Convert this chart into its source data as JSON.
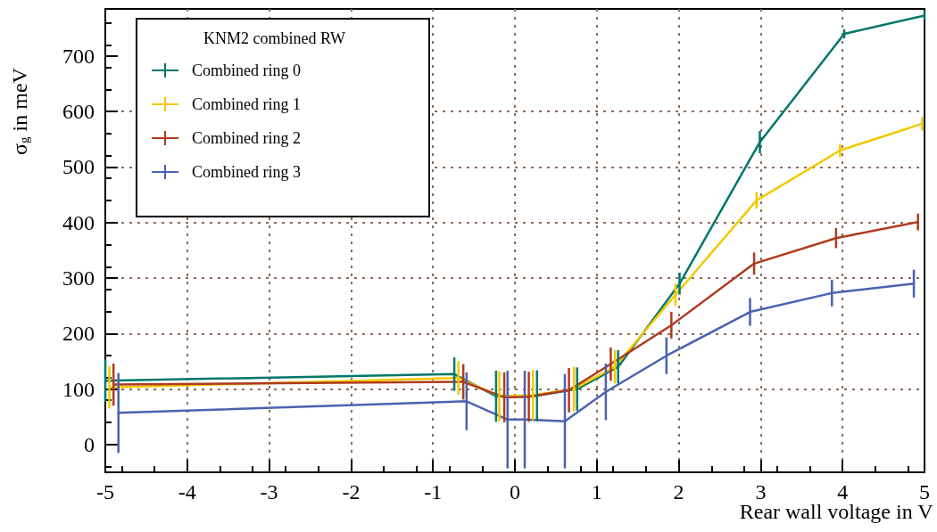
{
  "chart_data": {
    "type": "line",
    "xlabel": "Rear wall voltage in V",
    "ylabel": "σ$_{g}$ in meV",
    "legend_title": "KNM2 combined RW",
    "legend": "top left",
    "grid": true,
    "marker": "none",
    "line_style": "solid",
    "xlim": [
      -5,
      5
    ],
    "xticks": [
      -5,
      -4,
      -3,
      -2,
      -1,
      0,
      1,
      2,
      3,
      4,
      5
    ],
    "ylim": [
      -50,
      785
    ],
    "yticks": [
      0,
      100,
      200,
      300,
      400,
      500,
      600,
      700
    ],
    "series": [
      {
        "name": "Combined ring 0",
        "color": "#00776a",
        "x": [
          -5.0,
          -0.74,
          -0.23,
          0.27,
          0.76,
          1.26,
          2.01,
          2.99,
          4.02,
          5.0
        ],
        "values": [
          115,
          127,
          87,
          88,
          100,
          140,
          290,
          545,
          740,
          773
        ],
        "errors": [
          38,
          30,
          46,
          46,
          39,
          30,
          20,
          20,
          8,
          8
        ]
      },
      {
        "name": "Combined ring 1",
        "color": "#f2c800",
        "x": [
          -4.95,
          -0.69,
          -0.19,
          0.22,
          0.72,
          1.22,
          1.96,
          2.95,
          3.97,
          4.97
        ],
        "values": [
          103,
          120,
          87,
          89,
          100,
          140,
          270,
          440,
          530,
          578
        ],
        "errors": [
          38,
          30,
          45,
          45,
          40,
          30,
          20,
          15,
          12,
          12
        ]
      },
      {
        "name": "Combined ring 2",
        "color": "#b03a1e",
        "x": [
          -4.9,
          -0.63,
          -0.13,
          0.17,
          0.66,
          1.17,
          1.91,
          2.92,
          3.92,
          4.92
        ],
        "values": [
          108,
          113,
          85,
          86,
          98,
          145,
          215,
          326,
          372,
          401
        ],
        "errors": [
          38,
          32,
          45,
          45,
          40,
          30,
          24,
          20,
          18,
          15
        ]
      },
      {
        "name": "Combined ring 3",
        "color": "#4a62b0",
        "x": [
          -4.84,
          -0.59,
          -0.09,
          0.12,
          0.61,
          1.11,
          1.85,
          2.87,
          3.87,
          4.87
        ],
        "values": [
          57,
          78,
          45,
          45,
          42,
          95,
          160,
          239,
          273,
          290
        ],
        "errors": [
          72,
          52,
          88,
          88,
          85,
          51,
          33,
          25,
          24,
          25
        ]
      }
    ]
  }
}
